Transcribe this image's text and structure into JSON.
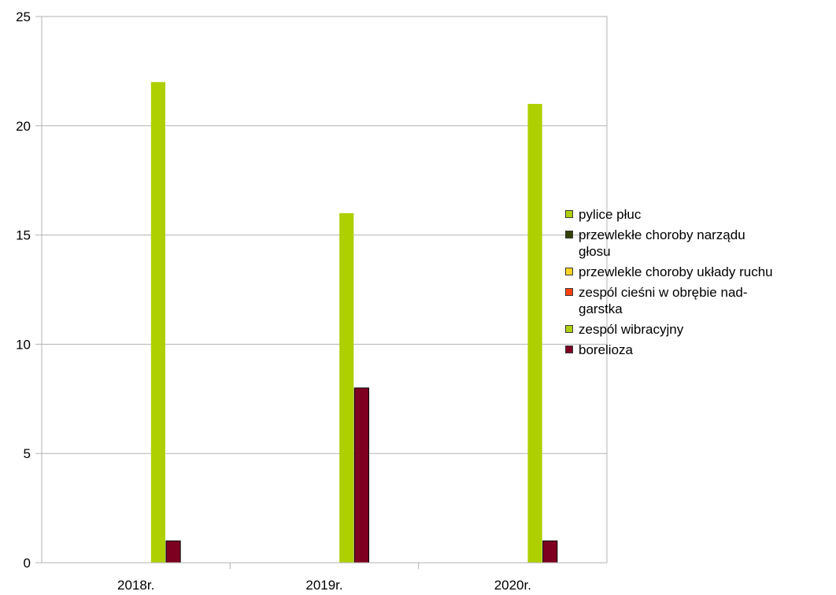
{
  "chart_data": {
    "type": "bar",
    "categories": [
      "2018r.",
      "2019r.",
      "2020r."
    ],
    "ylim": [
      0,
      25
    ],
    "yticks": [
      0,
      5,
      10,
      15,
      20,
      25
    ],
    "grid": true,
    "legend_position": "right",
    "series": [
      {
        "name": "pylice płuc",
        "color": "#aed000",
        "values": [
          0,
          0,
          0
        ]
      },
      {
        "name": "przewlekłe choroby narządu głosu",
        "color": "#314004",
        "values": [
          0,
          0,
          0
        ]
      },
      {
        "name": "przewlekle choroby układy ruchu",
        "color": "#ffd320",
        "values": [
          0,
          0,
          0
        ]
      },
      {
        "name": "zespól cieśni w obrębie nadgarstka",
        "color": "#ff420e",
        "values": [
          0,
          0,
          0
        ]
      },
      {
        "name": "zespól wibracyjny",
        "color": "#aecf00",
        "values": [
          22,
          16,
          21
        ]
      },
      {
        "name": "borelioza",
        "color": "#7e0021",
        "values": [
          1,
          8,
          1
        ]
      }
    ],
    "extra_bars_note": ""
  },
  "legend_labels": [
    {
      "line1": "pylice płuc",
      "line2": ""
    },
    {
      "line1": "przewlekłe choroby narządu",
      "line2": "głosu"
    },
    {
      "line1": "przewlekle choroby układy ruchu",
      "line2": ""
    },
    {
      "line1": "zespól cieśni w obrębie nad-",
      "line2": "garstka"
    },
    {
      "line1": "zespól wibracyjny",
      "line2": ""
    },
    {
      "line1": "borelioza",
      "line2": ""
    }
  ]
}
